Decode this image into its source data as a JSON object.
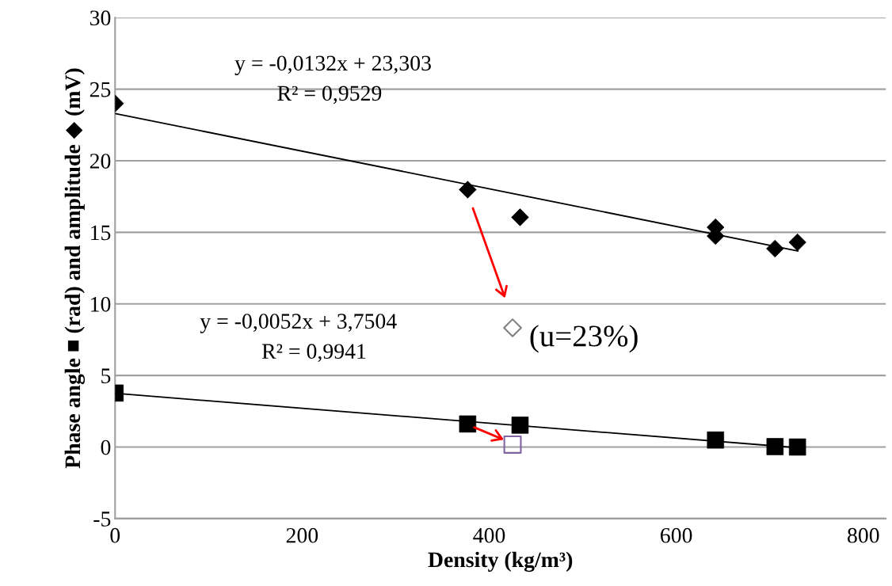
{
  "chart_data": {
    "type": "scatter",
    "xlabel": "Density (kg/m³)",
    "ylabel": "Phase angle ■ (rad) and amplitude ◆ (mV)",
    "xlim": [
      0,
      824
    ],
    "xticks": [
      0,
      200,
      400,
      600,
      800
    ],
    "ylim": [
      -5,
      30
    ],
    "yticks": [
      -5,
      0,
      5,
      10,
      15,
      20,
      25,
      30
    ],
    "grid": "y",
    "series": [
      {
        "marker": "diamond",
        "color": "#000000",
        "x": [
          0,
          377,
          433,
          642,
          642,
          705.6,
          729.6
        ],
        "values": [
          24.0,
          17.98,
          16.05,
          15.35,
          14.74,
          13.86,
          14.3
        ]
      },
      {
        "marker": "square",
        "color": "#000000",
        "x": [
          0,
          377,
          433,
          642,
          705.6,
          729.6
        ],
        "values": [
          3.77,
          1.61,
          1.53,
          0.49,
          0.03,
          0.0
        ]
      },
      {
        "marker": "diamond",
        "color": "#808080",
        "x": [
          425
        ],
        "values": [
          8.33
        ]
      },
      {
        "marker": "square",
        "color": "#8064a2",
        "x": [
          425
        ],
        "values": [
          0.17
        ]
      },
      {
        "type": "line",
        "color": "#000000",
        "x": [
          0,
          730
        ],
        "values": [
          23.3,
          13.7
        ]
      },
      {
        "type": "line",
        "color": "#000000",
        "x": [
          0,
          730
        ],
        "values": [
          3.75,
          -0.05
        ]
      }
    ],
    "annotations": [
      "y = -0,0132x + 23,303",
      "R² = 0,9529",
      "y = -0,0052x + 3,7504",
      "R² = 0,9941",
      {
        "text": "(u=23%)",
        "x": 425,
        "y": 8.33
      }
    ]
  }
}
